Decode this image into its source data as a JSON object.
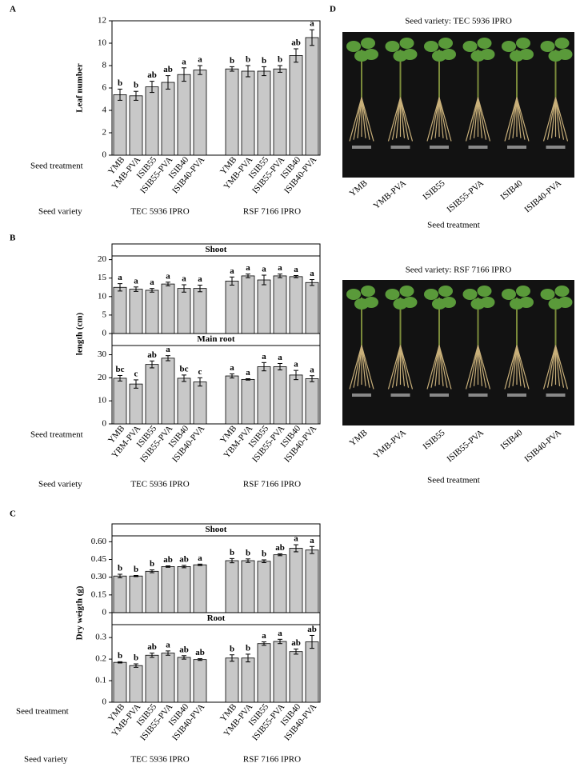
{
  "chart_data": [
    {
      "type": "bar",
      "panel": "A",
      "ylabel": "Leaf number",
      "xlabel": "Seed treatment",
      "group_title": "Seed variety",
      "groups": [
        "TEC 5936 IPRO",
        "RSF 7166 IPRO"
      ],
      "color": "#c8c8c8",
      "categories": [
        "YMB",
        "YMB-PVA",
        "ISIB55",
        "ISIB55-PVA",
        "ISIB40",
        "ISIB40-PVA",
        "YMB",
        "YMB-PVA",
        "ISIB55",
        "ISIB55-PVA",
        "ISIB40",
        "ISIB40-PVA"
      ],
      "facets": [
        {
          "values": [
            5.4,
            5.3,
            6.1,
            6.5,
            7.2,
            7.6,
            7.7,
            7.5,
            7.5,
            7.7,
            8.9,
            10.5
          ],
          "errors": [
            0.5,
            0.4,
            0.5,
            0.6,
            0.6,
            0.4,
            0.2,
            0.5,
            0.4,
            0.3,
            0.6,
            0.7
          ],
          "annotations": [
            "b",
            "b",
            "ab",
            "ab",
            "a",
            "a",
            "b",
            "b",
            "b",
            "b",
            "ab",
            "a"
          ],
          "ylim": [
            0,
            12
          ],
          "yticks": [
            0,
            2,
            4,
            6,
            8,
            10,
            12
          ]
        }
      ]
    },
    {
      "type": "bar",
      "panel": "B",
      "ylabel": "length (cm)",
      "xlabel": "Seed treatment",
      "group_title": "Seed variety",
      "groups": [
        "TEC 5936 IPRO",
        "RSF 7166 IPRO"
      ],
      "color": "#c8c8c8",
      "categories": [
        "YMB",
        "YBM-PVA",
        "ISIB55",
        "ISIB55-PVA",
        "ISIB40",
        "ISIB40-PVA",
        "YMB",
        "YBM-PVA",
        "ISIB55",
        "ISIB55-PVA",
        "ISIB40",
        "ISIB40-PVA"
      ],
      "facets": [
        {
          "title": "Shoot",
          "values": [
            12.5,
            12,
            11.7,
            13.4,
            12.2,
            12.2,
            14.2,
            15.6,
            14.5,
            15.6,
            15.4,
            13.8
          ],
          "errors": [
            1,
            0.6,
            0.5,
            0.5,
            1,
            0.9,
            1.1,
            0.5,
            1.3,
            0.5,
            0.3,
            0.8
          ],
          "annotations": [
            "a",
            "a",
            "a",
            "a",
            "a",
            "a",
            "a",
            "a",
            "a",
            "a",
            "a",
            "a"
          ],
          "ylim": [
            0,
            21
          ],
          "yticks": [
            0,
            5,
            10,
            15,
            20
          ]
        },
        {
          "title": "Main root",
          "values": [
            19.8,
            17.3,
            25.8,
            28.5,
            19.8,
            18.2,
            20.8,
            19.3,
            24.8,
            24.8,
            21.2,
            19.6
          ],
          "errors": [
            1.2,
            1.8,
            1.5,
            1.1,
            1.4,
            1.8,
            0.9,
            0.3,
            1.8,
            1.4,
            2,
            1.3
          ],
          "annotations": [
            "bc",
            "c",
            "ab",
            "a",
            "bc",
            "c",
            "a",
            "a",
            "a",
            "a",
            "a",
            "a"
          ],
          "ylim": [
            0,
            34
          ],
          "yticks": [
            0,
            10,
            20,
            30
          ]
        }
      ]
    },
    {
      "type": "bar",
      "panel": "C",
      "ylabel": "Dry weigth (g)",
      "xlabel": "Seed treatment",
      "group_title": "Seed variety",
      "groups": [
        "TEC 5936 IPRO",
        "RSF 7166 IPRO"
      ],
      "color": "#c8c8c8",
      "categories": [
        "YMB",
        "YMB-PVA",
        "ISIB55",
        "ISIB55-PVA",
        "ISIB40",
        "ISIB40-PVA",
        "YMB",
        "YMB-PVA",
        "ISIB55",
        "ISIB55-PVA",
        "ISIB40",
        "ISIB40-PVA"
      ],
      "facets": [
        {
          "title": "Shoot",
          "values": [
            0.31,
            0.31,
            0.35,
            0.39,
            0.39,
            0.405,
            0.44,
            0.44,
            0.435,
            0.49,
            0.545,
            0.53
          ],
          "errors": [
            0.015,
            0.005,
            0.012,
            0.006,
            0.01,
            0.006,
            0.018,
            0.015,
            0.012,
            0.008,
            0.03,
            0.03
          ],
          "annotations": [
            "b",
            "b",
            "b",
            "ab",
            "ab",
            "a",
            "b",
            "b",
            "b",
            "ab",
            "a",
            "a"
          ],
          "ylim": [
            0,
            0.65
          ],
          "yticks": [
            0,
            0.15,
            {
              "value": 0.3,
              "label": "0.30"
            },
            0.45,
            {
              "value": 0.6,
              "label": "0.60"
            }
          ]
        },
        {
          "title": "Root",
          "values": [
            0.185,
            0.17,
            0.218,
            0.228,
            0.208,
            0.198,
            0.205,
            0.205,
            0.272,
            0.282,
            0.235,
            0.28
          ],
          "errors": [
            0.003,
            0.008,
            0.01,
            0.01,
            0.008,
            0.004,
            0.015,
            0.018,
            0.008,
            0.01,
            0.012,
            0.03
          ],
          "annotations": [
            "b",
            "b",
            "ab",
            "a",
            "ab",
            "ab",
            "b",
            "b",
            "a",
            "a",
            "ab",
            "ab"
          ],
          "ylim": [
            0,
            0.36
          ],
          "yticks": [
            0,
            0.1,
            0.2,
            0.3
          ]
        }
      ]
    }
  ],
  "photo_panel": {
    "panel": "D",
    "photos": [
      {
        "title": "Seed variety: TEC 5936 IPRO",
        "labels": [
          "YMB",
          "YMB-PVA",
          "ISIB55",
          "ISIB55-PVA",
          "ISIB40",
          "ISIB40-PVA"
        ],
        "xlabel": "Seed treatment"
      },
      {
        "title": "Seed variety: RSF 7166 IPRO",
        "labels": [
          "YMB",
          "YMB-PVA",
          "ISIB55",
          "ISIB55-PVA",
          "ISIB40",
          "ISIB40-PVA"
        ],
        "xlabel": "Seed treatment"
      }
    ]
  }
}
